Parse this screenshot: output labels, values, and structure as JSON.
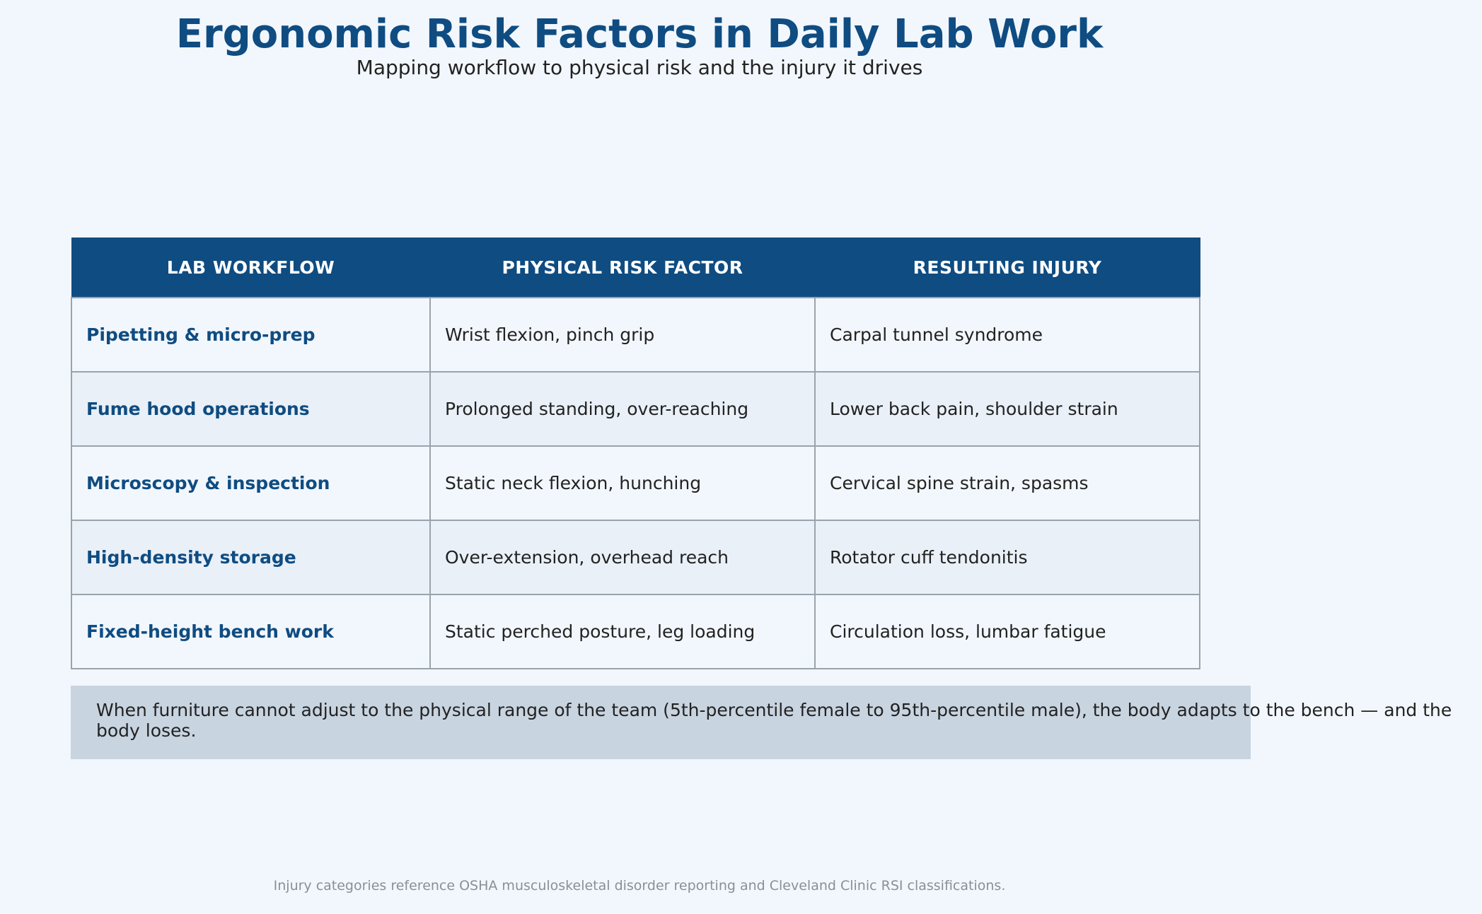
{
  "header": {
    "title": "Ergonomic Risk Factors in Daily Lab Work",
    "subtitle": "Mapping workflow to physical risk and the injury it drives"
  },
  "table": {
    "columns": [
      "LAB WORKFLOW",
      "PHYSICAL RISK FACTOR",
      "RESULTING INJURY"
    ],
    "rows": [
      {
        "workflow": "Pipetting & micro-prep",
        "risk": "Wrist flexion, pinch grip",
        "injury": "Carpal tunnel syndrome"
      },
      {
        "workflow": "Fume hood operations",
        "risk": "Prolonged standing, over-reaching",
        "injury": "Lower back pain, shoulder strain"
      },
      {
        "workflow": "Microscopy & inspection",
        "risk": "Static neck flexion, hunching",
        "injury": "Cervical spine strain, spasms"
      },
      {
        "workflow": "High-density storage",
        "risk": "Over-extension, overhead reach",
        "injury": "Rotator cuff tendonitis"
      },
      {
        "workflow": "Fixed-height bench work",
        "risk": "Static perched posture, leg loading",
        "injury": "Circulation loss, lumbar fatigue"
      }
    ]
  },
  "callout": {
    "text": "When furniture cannot adjust to the physical range of the team (5th-percentile female to 95th-percentile male), the body adapts to the bench — and the body loses."
  },
  "footnote": "Injury categories reference OSHA musculoskeletal disorder reporting and Cleveland Clinic RSI classifications.",
  "colors": {
    "accent": "#0f4c81",
    "background": "#f2f7fd",
    "row_alt": "#e9f0f8",
    "callout_bg": "#c8d4e0"
  }
}
